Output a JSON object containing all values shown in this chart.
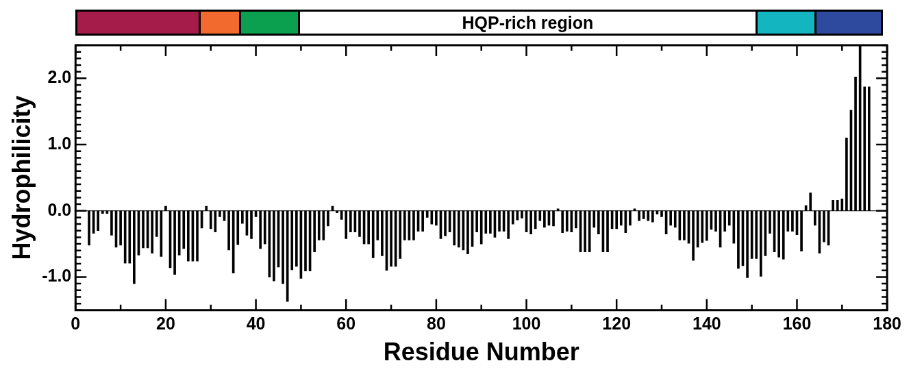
{
  "chart_data": {
    "type": "bar",
    "xlabel": "Residue Number",
    "ylabel": "Hydrophilicity",
    "color": "#000000",
    "legend": false,
    "grid": false,
    "x": [
      3,
      4,
      5,
      6,
      7,
      8,
      9,
      10,
      11,
      12,
      13,
      14,
      15,
      16,
      17,
      18,
      19,
      20,
      21,
      22,
      23,
      24,
      25,
      26,
      27,
      28,
      29,
      30,
      31,
      32,
      33,
      34,
      35,
      36,
      37,
      38,
      39,
      40,
      41,
      42,
      43,
      44,
      45,
      46,
      47,
      48,
      49,
      50,
      51,
      52,
      53,
      54,
      55,
      56,
      57,
      58,
      59,
      60,
      61,
      62,
      63,
      64,
      65,
      66,
      67,
      68,
      69,
      70,
      71,
      72,
      73,
      74,
      75,
      76,
      77,
      78,
      79,
      80,
      81,
      82,
      83,
      84,
      85,
      86,
      87,
      88,
      89,
      90,
      91,
      92,
      93,
      94,
      95,
      96,
      97,
      98,
      99,
      100,
      101,
      102,
      103,
      104,
      105,
      106,
      107,
      108,
      109,
      110,
      111,
      112,
      113,
      114,
      115,
      116,
      117,
      118,
      119,
      120,
      121,
      122,
      123,
      124,
      125,
      126,
      127,
      128,
      129,
      130,
      131,
      132,
      133,
      134,
      135,
      136,
      137,
      138,
      139,
      140,
      141,
      142,
      143,
      144,
      145,
      146,
      147,
      148,
      149,
      150,
      151,
      152,
      153,
      154,
      155,
      156,
      157,
      158,
      159,
      160,
      161,
      162,
      163,
      164,
      165,
      166,
      167,
      168,
      169,
      170,
      171,
      172,
      173,
      174,
      175,
      176
    ],
    "values": [
      -0.52,
      -0.34,
      -0.3,
      -0.04,
      -0.04,
      -0.37,
      -0.55,
      -0.52,
      -0.79,
      -0.79,
      -1.1,
      -0.67,
      -0.56,
      -0.56,
      -0.64,
      -0.39,
      -0.69,
      0.07,
      -0.86,
      -0.96,
      -0.67,
      -0.57,
      -0.76,
      -0.76,
      -0.76,
      -0.26,
      0.07,
      -0.27,
      -0.32,
      -0.09,
      -0.15,
      -0.59,
      -0.94,
      -0.51,
      -0.19,
      -0.37,
      -0.42,
      -0.09,
      -0.57,
      -0.5,
      -1.0,
      -1.06,
      -0.85,
      -1.1,
      -1.37,
      -0.89,
      -0.84,
      -1.02,
      -0.91,
      -0.91,
      -0.62,
      -0.44,
      -0.44,
      -0.23,
      0.07,
      -0.03,
      -0.13,
      -0.42,
      -0.32,
      -0.32,
      -0.39,
      -0.5,
      -0.5,
      -0.71,
      -0.44,
      -0.68,
      -0.9,
      -0.84,
      -0.84,
      -0.72,
      -0.44,
      -0.44,
      -0.44,
      -0.31,
      -0.31,
      -0.1,
      -0.2,
      -0.22,
      -0.42,
      -0.38,
      -0.32,
      -0.52,
      -0.55,
      -0.59,
      -0.65,
      -0.54,
      -0.32,
      -0.5,
      -0.34,
      -0.34,
      -0.4,
      -0.31,
      -0.31,
      -0.42,
      -0.2,
      -0.14,
      -0.11,
      -0.32,
      -0.35,
      -0.27,
      -0.15,
      -0.25,
      -0.22,
      -0.23,
      0.03,
      -0.33,
      -0.31,
      -0.32,
      -0.26,
      -0.62,
      -0.62,
      -0.62,
      -0.25,
      -0.35,
      -0.62,
      -0.62,
      -0.27,
      -0.27,
      -0.22,
      -0.33,
      -0.22,
      0.03,
      -0.15,
      -0.12,
      -0.15,
      -0.17,
      -0.05,
      -0.09,
      -0.35,
      -0.22,
      -0.25,
      -0.44,
      -0.44,
      -0.49,
      -0.75,
      -0.55,
      -0.48,
      -0.45,
      -0.28,
      -0.31,
      -0.55,
      -0.31,
      -0.22,
      -0.49,
      -0.87,
      -0.83,
      -1.01,
      -0.72,
      -0.72,
      -0.99,
      -0.68,
      -0.34,
      -0.62,
      -0.7,
      -0.73,
      -0.31,
      -0.31,
      -0.36,
      -0.61,
      0.08,
      0.27,
      -0.22,
      -0.64,
      -0.47,
      -0.52,
      0.16,
      0.16,
      0.18,
      1.1,
      1.52,
      2.02,
      2.5,
      1.87,
      1.87
    ],
    "xlim": [
      0,
      180
    ],
    "xticks": [
      0,
      {
        "value": 10,
        "label": null
      },
      20,
      {
        "value": 30,
        "label": null
      },
      40,
      {
        "value": 50,
        "label": null
      },
      60,
      {
        "value": 70,
        "label": null
      },
      80,
      {
        "value": 90,
        "label": null
      },
      100,
      {
        "value": 110,
        "label": null
      },
      120,
      {
        "value": 130,
        "label": null
      },
      140,
      {
        "value": 150,
        "label": null
      },
      160,
      {
        "value": 170,
        "label": null
      },
      180
    ],
    "ylim": [
      -1.5,
      2.5
    ],
    "yticks": [
      {
        "value": -1.5,
        "label": null
      },
      {
        "value": -1.4,
        "label": null
      },
      {
        "value": -1.3,
        "label": null
      },
      {
        "value": -1.2,
        "label": null
      },
      {
        "value": -1.1,
        "label": null
      },
      {
        "value": -1,
        "label": "-1.0"
      },
      {
        "value": -0.9,
        "label": null
      },
      {
        "value": -0.8,
        "label": null
      },
      {
        "value": -0.7,
        "label": null
      },
      {
        "value": -0.6,
        "label": null
      },
      {
        "value": -0.5,
        "label": null
      },
      {
        "value": -0.4,
        "label": null
      },
      {
        "value": -0.3,
        "label": null
      },
      {
        "value": -0.2,
        "label": null
      },
      {
        "value": -0.1,
        "label": null
      },
      {
        "value": 0,
        "label": "0.0"
      },
      {
        "value": 0.1,
        "label": null
      },
      {
        "value": 0.2,
        "label": null
      },
      {
        "value": 0.3,
        "label": null
      },
      {
        "value": 0.4,
        "label": null
      },
      {
        "value": 0.5,
        "label": null
      },
      {
        "value": 0.6,
        "label": null
      },
      {
        "value": 0.7,
        "label": null
      },
      {
        "value": 0.8,
        "label": null
      },
      {
        "value": 0.9,
        "label": null
      },
      {
        "value": 1,
        "label": "1.0"
      },
      {
        "value": 1.1,
        "label": null
      },
      {
        "value": 1.2,
        "label": null
      },
      {
        "value": 1.3,
        "label": null
      },
      {
        "value": 1.4,
        "label": null
      },
      {
        "value": 1.5,
        "label": null
      },
      {
        "value": 1.6,
        "label": null
      },
      {
        "value": 1.7,
        "label": null
      },
      {
        "value": 1.8,
        "label": null
      },
      {
        "value": 1.9,
        "label": null
      },
      {
        "value": 2,
        "label": "2.0"
      },
      {
        "value": 2.1,
        "label": null
      },
      {
        "value": 2.2,
        "label": null
      },
      {
        "value": 2.3,
        "label": null
      },
      {
        "value": 2.4,
        "label": null
      },
      {
        "value": 2.5,
        "label": null
      }
    ],
    "ref_lines": [
      {
        "axis": "y",
        "value": 0,
        "color": "#000000"
      }
    ],
    "annotations": [
      "HQP-rich region"
    ]
  }
}
